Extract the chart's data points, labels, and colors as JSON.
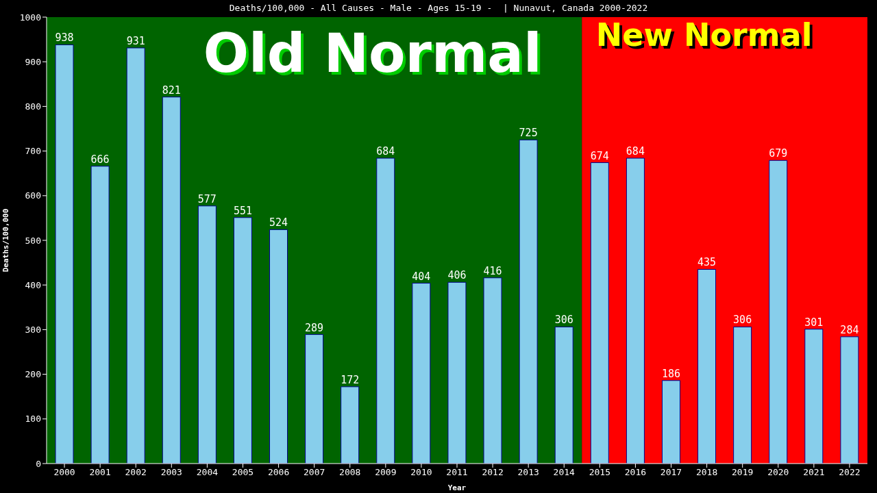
{
  "chart_data": {
    "type": "bar",
    "title": "Deaths/100,000 - All Causes - Male - Ages 15-19 -  | Nunavut, Canada 2000-2022",
    "xlabel": "Year",
    "ylabel": "Deaths/100,000",
    "categories": [
      "2000",
      "2001",
      "2002",
      "2003",
      "2004",
      "2005",
      "2006",
      "2007",
      "2008",
      "2009",
      "2010",
      "2011",
      "2012",
      "2013",
      "2014",
      "2015",
      "2016",
      "2017",
      "2018",
      "2019",
      "2020",
      "2021",
      "2022"
    ],
    "values": [
      938,
      666,
      931,
      821,
      577,
      551,
      524,
      289,
      172,
      684,
      404,
      406,
      416,
      725,
      306,
      674,
      684,
      186,
      435,
      306,
      679,
      301,
      284
    ],
    "color": "#87ceeb",
    "ylim": [
      0,
      1000
    ],
    "yticks": [
      0,
      100,
      200,
      300,
      400,
      500,
      600,
      700,
      800,
      900,
      1000
    ],
    "grid": false,
    "data_labels": true,
    "bands": [
      {
        "axis": "x",
        "from": "2000",
        "to": "2014",
        "label": "Old Normal",
        "color": "#006400"
      },
      {
        "axis": "x",
        "from": "2015",
        "to": "2022",
        "label": "New Normal",
        "color": "#ff0000"
      }
    ]
  }
}
